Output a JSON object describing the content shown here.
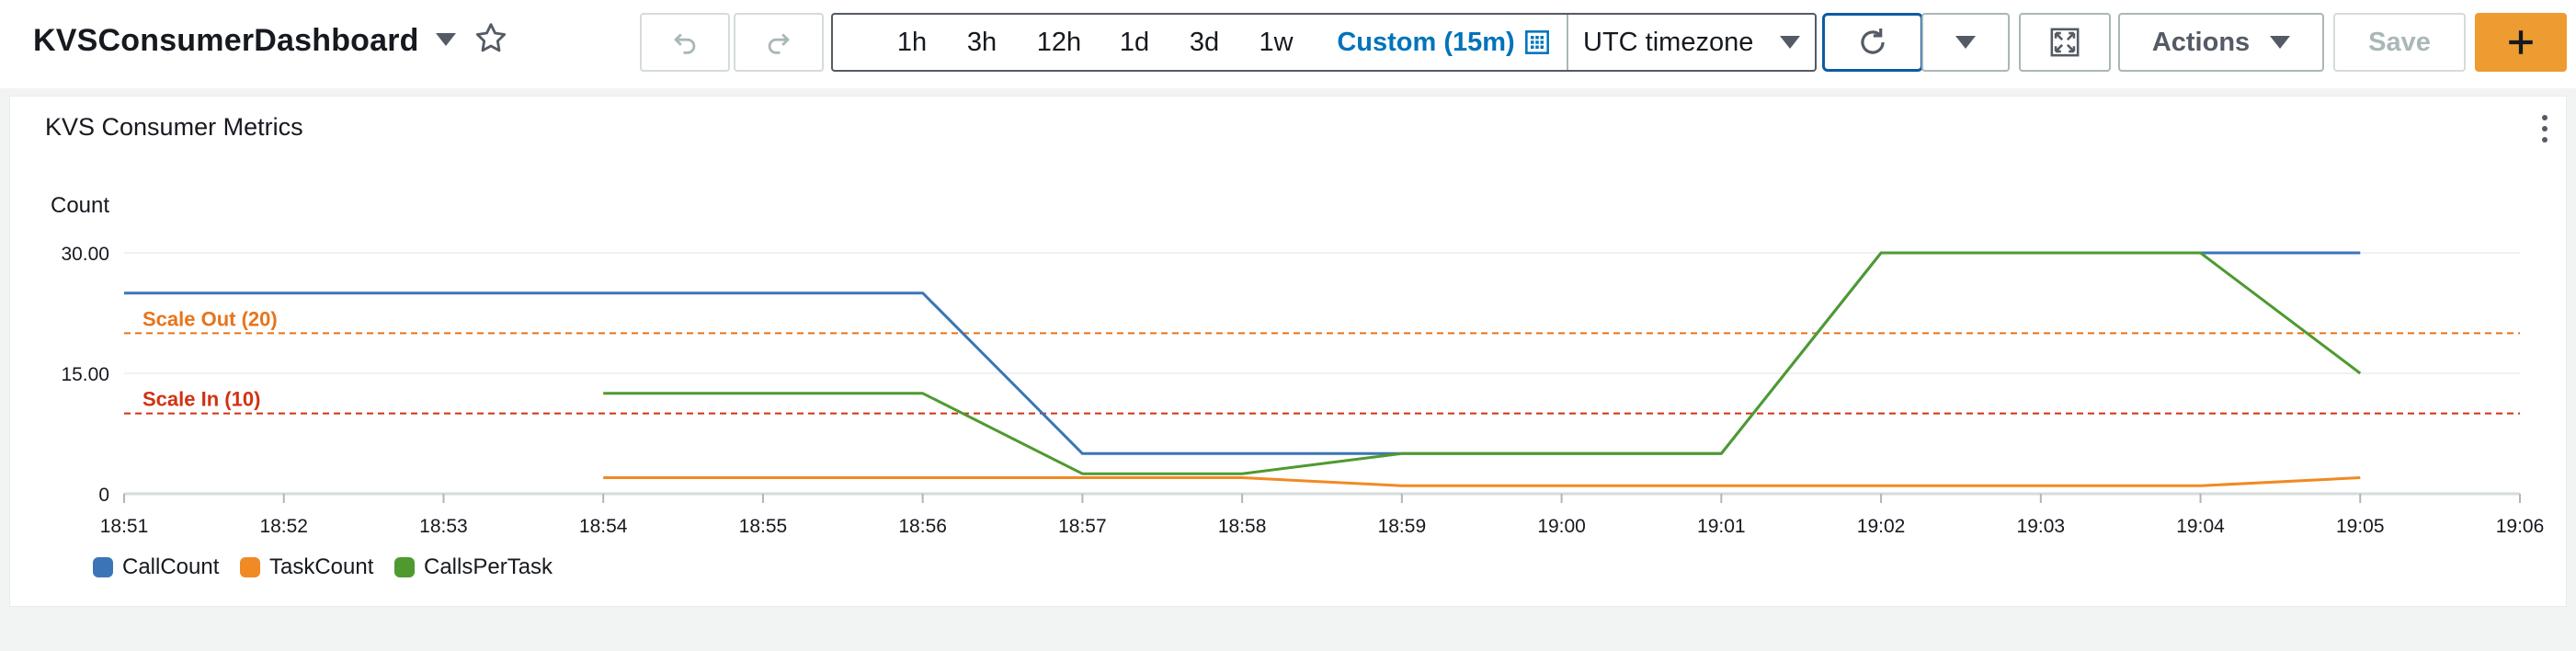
{
  "header": {
    "title": "KVSConsumerDashboard",
    "time_ranges": [
      "1h",
      "3h",
      "12h",
      "1d",
      "3d",
      "1w"
    ],
    "custom_range": "Custom (15m)",
    "timezone": "UTC timezone",
    "actions_label": "Actions",
    "save_label": "Save",
    "add_label": "+"
  },
  "panel": {
    "title": "KVS Consumer Metrics"
  },
  "chart_data": {
    "type": "line",
    "title": "KVS Consumer Metrics",
    "ylabel": "Count",
    "ylim": [
      0,
      30
    ],
    "yticks": [
      0,
      15,
      30
    ],
    "ytick_labels": [
      "0",
      "15.00",
      "30.00"
    ],
    "xticks": [
      "18:51",
      "18:52",
      "18:53",
      "18:54",
      "18:55",
      "18:56",
      "18:57",
      "18:58",
      "18:59",
      "19:00",
      "19:01",
      "19:02",
      "19:03",
      "19:04",
      "19:05",
      "19:06"
    ],
    "grid": true,
    "legend_position": "bottom-left",
    "series": [
      {
        "name": "CallCount",
        "color": "#3b75b8",
        "points": [
          [
            "18:51",
            25
          ],
          [
            "18:56",
            25
          ],
          [
            "18:57",
            5
          ],
          [
            "18:59",
            5
          ],
          [
            "19:01",
            5
          ],
          [
            "19:02",
            30
          ],
          [
            "19:04",
            30
          ],
          [
            "19:05",
            30
          ]
        ]
      },
      {
        "name": "TaskCount",
        "color": "#f08a24",
        "points": [
          [
            "18:54",
            2
          ],
          [
            "18:58",
            2
          ],
          [
            "18:59",
            1
          ],
          [
            "19:04",
            1
          ],
          [
            "19:05",
            2
          ]
        ]
      },
      {
        "name": "CallsPerTask",
        "color": "#4e9a2f",
        "points": [
          [
            "18:54",
            12.5
          ],
          [
            "18:56",
            12.5
          ],
          [
            "18:57",
            2.5
          ],
          [
            "18:58",
            2.5
          ],
          [
            "18:59",
            5
          ],
          [
            "19:01",
            5
          ],
          [
            "19:02",
            30
          ],
          [
            "19:04",
            30
          ],
          [
            "19:05",
            15
          ]
        ]
      }
    ],
    "annotations": [
      {
        "label": "Scale Out (20)",
        "value": 20,
        "color": "#e8741a"
      },
      {
        "label": "Scale In (10)",
        "value": 10,
        "color": "#d13212"
      }
    ]
  }
}
